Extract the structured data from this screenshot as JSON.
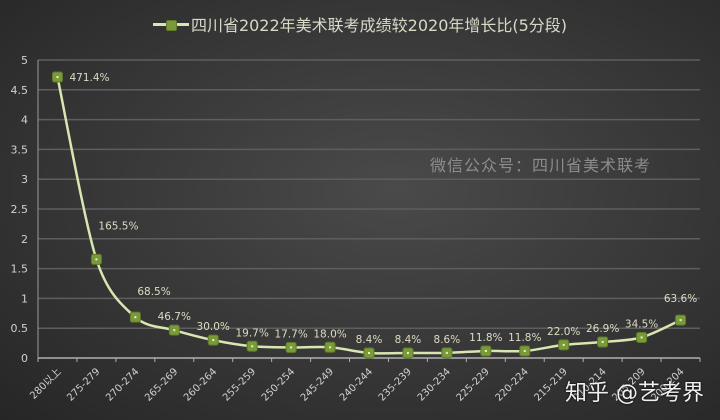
{
  "chart_data": {
    "type": "line",
    "title": "",
    "legend": [
      "四川省2022年美术联考成绩较2020年增长比(5分段)"
    ],
    "legend_position": "top",
    "xlabel": "",
    "ylabel": "",
    "ylim": [
      0,
      5
    ],
    "yticks": [
      "0",
      "0.5",
      "1",
      "1.5",
      "2",
      "2.5",
      "3",
      "3.5",
      "4",
      "4.5",
      "5"
    ],
    "grid": true,
    "categories": [
      "280以上",
      "275-279",
      "270-274",
      "265-269",
      "260-264",
      "255-259",
      "250-254",
      "245-249",
      "240-244",
      "235-239",
      "230-234",
      "225-229",
      "220-224",
      "215-219",
      "210-214",
      "205-209",
      "200-204"
    ],
    "series": [
      {
        "name": "四川省2022年美术联考成绩较2020年增长比(5分段)",
        "values": [
          4.714,
          1.655,
          0.685,
          0.467,
          0.3,
          0.197,
          0.177,
          0.18,
          0.084,
          0.084,
          0.086,
          0.118,
          0.118,
          0.22,
          0.269,
          0.345,
          0.636
        ],
        "labels": [
          "471.4%",
          "165.5%",
          "68.5%",
          "46.7%",
          "30.0%",
          "19.7%",
          "17.7%",
          "18.0%",
          "8.4%",
          "8.4%",
          "8.6%",
          "11.8%",
          "11.8%",
          "22.0%",
          "26.9%",
          "34.5%",
          "63.6%"
        ],
        "color": "#d8e6b0",
        "marker_color": "#7a9a3a"
      }
    ]
  },
  "legend_label": "四川省2022年美术联考成绩较2020年增长比(5分段)",
  "watermark": "微信公众号：四川省美术联考",
  "zhihu_watermark": "知乎 @艺考界"
}
